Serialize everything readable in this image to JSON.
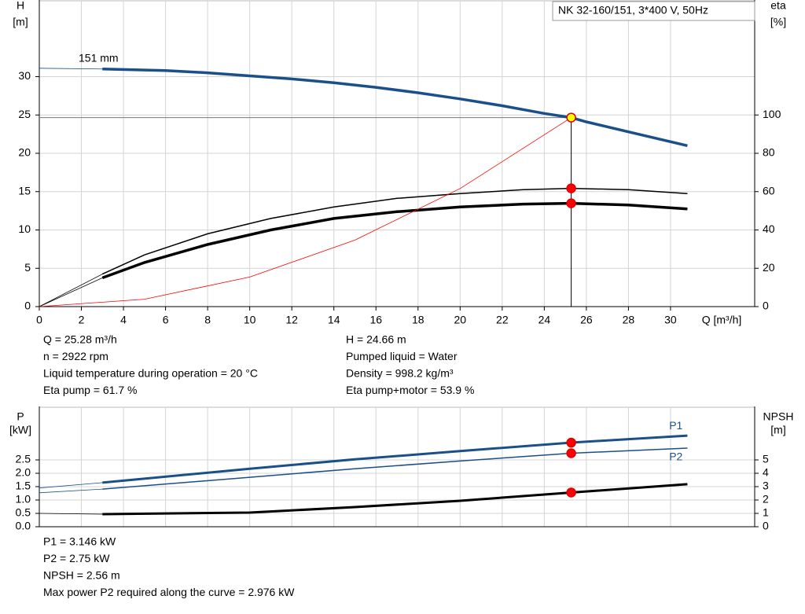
{
  "chart_data": [
    {
      "type": "line",
      "title": "NK 32-160/151, 3*400 V, 50Hz",
      "ylabel": "H",
      "yunit": "[m]",
      "y2label": "eta",
      "y2unit": "[%]",
      "xlabel": "Q [m³/h]",
      "xlim": [
        0,
        34
      ],
      "xticks": [
        0,
        2,
        4,
        6,
        8,
        10,
        12,
        14,
        16,
        18,
        20,
        22,
        24,
        26,
        28,
        30
      ],
      "ylim": [
        0,
        40
      ],
      "yticks": [
        0,
        5,
        10,
        15,
        20,
        25,
        30
      ],
      "y2lim": [
        0,
        160
      ],
      "y2ticks": [
        0,
        20,
        40,
        60,
        80,
        100
      ],
      "grid": true,
      "series": [
        {
          "name": "151 mm",
          "color": "#1b4f8a",
          "axis": "y",
          "x": [
            0,
            3,
            6,
            8,
            10,
            12,
            14,
            16,
            18,
            20,
            22,
            24,
            25.28,
            26,
            28,
            30.8
          ],
          "values": [
            31.1,
            31.0,
            30.8,
            30.5,
            30.1,
            29.7,
            29.2,
            28.6,
            27.9,
            27.1,
            26.2,
            25.2,
            24.66,
            24.1,
            22.8,
            21.0
          ]
        },
        {
          "color": "#000000",
          "axis": "y2",
          "x": [
            0,
            3,
            5,
            8,
            11,
            14,
            17,
            20,
            23,
            25.28,
            28,
            30.8
          ],
          "values": [
            0,
            17,
            27,
            38,
            46,
            52,
            56.5,
            59,
            61,
            61.7,
            61,
            59
          ]
        },
        {
          "color": "#000000",
          "axis": "y2",
          "x": [
            0,
            3,
            5,
            8,
            11,
            14,
            17,
            20,
            23,
            25.28,
            28,
            30.8
          ],
          "values": [
            0,
            15,
            23,
            32.4,
            40,
            46,
            49.5,
            52,
            53.5,
            53.9,
            53,
            51
          ]
        },
        {
          "color": "#ff0000",
          "axis": "y",
          "x": [
            0,
            5,
            10,
            15,
            20,
            25.28
          ],
          "values": [
            0,
            0.96,
            3.86,
            8.68,
            15.4,
            24.66
          ]
        }
      ],
      "markers": [
        {
          "x": 25.28,
          "y": 24.66,
          "color": "#ffff00"
        },
        {
          "x": 25.28,
          "y": 61.7,
          "axis": "y2",
          "color": "#ff0000"
        },
        {
          "x": 25.28,
          "y": 53.9,
          "axis": "y2",
          "color": "#ff0000"
        }
      ],
      "notes": [
        [
          "Q = 25.28 m³/h",
          "n = 2922 rpm",
          "Liquid temperature during operation = 20 °C",
          "Eta pump = 61.7 %"
        ],
        [
          "H = 24.66 m",
          "Pumped liquid = Water",
          "Density = 998.2 kg/m³",
          "Eta pump+motor = 53.9 %"
        ]
      ]
    },
    {
      "type": "line",
      "ylabel": "P",
      "yunit": "[kW]",
      "y2label": "NPSH",
      "y2unit": "[m]",
      "xlim": [
        0,
        34
      ],
      "ylim": [
        0,
        4.5
      ],
      "yticks": [
        {
          "value": 0,
          "label": "0.0"
        },
        0.5,
        {
          "value": 1,
          "label": "1.0"
        },
        1.5,
        {
          "value": 2,
          "label": "2.0"
        },
        2.5
      ],
      "y2lim": [
        0,
        9
      ],
      "y2ticks": [
        0,
        1,
        2,
        3,
        4,
        5
      ],
      "grid": true,
      "series": [
        {
          "name": "P1",
          "color": "#1b4f8a",
          "axis": "y",
          "x": [
            0,
            3,
            10,
            15,
            20,
            25.28,
            30.8
          ],
          "values": [
            1.45,
            1.65,
            2.17,
            2.52,
            2.83,
            3.146,
            3.41
          ]
        },
        {
          "name": "P2",
          "color": "#1b4f8a",
          "axis": "y",
          "x": [
            0,
            3,
            10,
            15,
            20,
            25.28,
            30.8
          ],
          "values": [
            1.27,
            1.41,
            1.85,
            2.17,
            2.46,
            2.75,
            2.94
          ]
        },
        {
          "color": "#000000",
          "axis": "y2",
          "x": [
            0,
            3,
            10,
            15,
            20,
            25.28,
            30.8
          ],
          "values": [
            1.0,
            0.94,
            1.06,
            1.47,
            1.94,
            2.56,
            3.18
          ]
        }
      ],
      "markers": [
        {
          "x": 25.28,
          "y": 3.146,
          "color": "#ff0000"
        },
        {
          "x": 25.28,
          "y": 2.75,
          "color": "#ff0000"
        },
        {
          "x": 25.28,
          "y": 2.56,
          "axis": "y2",
          "color": "#ff0000"
        }
      ],
      "notes": [
        [
          "P1 = 3.146 kW",
          "P2 = 2.75 kW",
          "NPSH = 2.56 m",
          "Max power P2 required along the curve = 2.976 kW"
        ]
      ]
    }
  ]
}
